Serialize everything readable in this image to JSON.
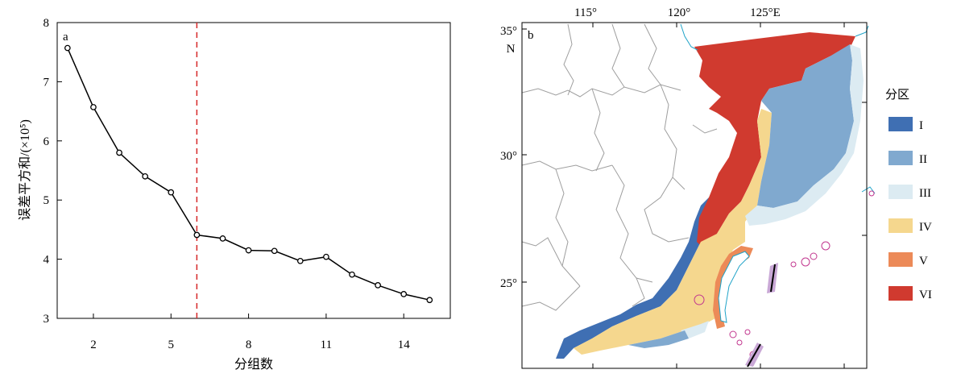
{
  "chart_data": [
    {
      "type": "line",
      "panel_label": "a",
      "xlabel": "分组数",
      "ylabel": "误差平方和/(×10⁵)",
      "x_ticks": [
        2,
        5,
        8,
        11,
        14
      ],
      "y_ticks": [
        3,
        4,
        5,
        6,
        7,
        8
      ],
      "xlim": [
        0.6,
        15.8
      ],
      "ylim": [
        3,
        8
      ],
      "x": [
        1,
        2,
        3,
        4,
        5,
        6,
        7,
        8,
        9,
        10,
        11,
        12,
        13,
        14,
        15
      ],
      "series": [
        {
          "values": [
            7.57,
            6.57,
            5.8,
            5.4,
            5.13,
            4.41,
            4.35,
            4.15,
            4.14,
            3.97,
            4.04,
            3.74,
            3.56,
            3.41,
            3.31
          ]
        }
      ],
      "reference_line": {
        "x": 6,
        "style": "dashed",
        "color": "#d62728"
      },
      "grid": false,
      "marker": "open-circle"
    },
    {
      "type": "map",
      "panel_label": "b",
      "lon_ticks": [
        "115°",
        "120°",
        "125°E"
      ],
      "lat_ticks": [
        "35°",
        "30°",
        "25°"
      ],
      "lat_unit": "N",
      "legend": {
        "title": "分区",
        "items": [
          {
            "label": "I",
            "color": "#3f6fb3"
          },
          {
            "label": "II",
            "color": "#80a9cf"
          },
          {
            "label": "III",
            "color": "#dcebf2"
          },
          {
            "label": "IV",
            "color": "#f5d78e"
          },
          {
            "label": "V",
            "color": "#ec8a58"
          },
          {
            "label": "VI",
            "color": "#d03a2f"
          }
        ]
      }
    }
  ]
}
